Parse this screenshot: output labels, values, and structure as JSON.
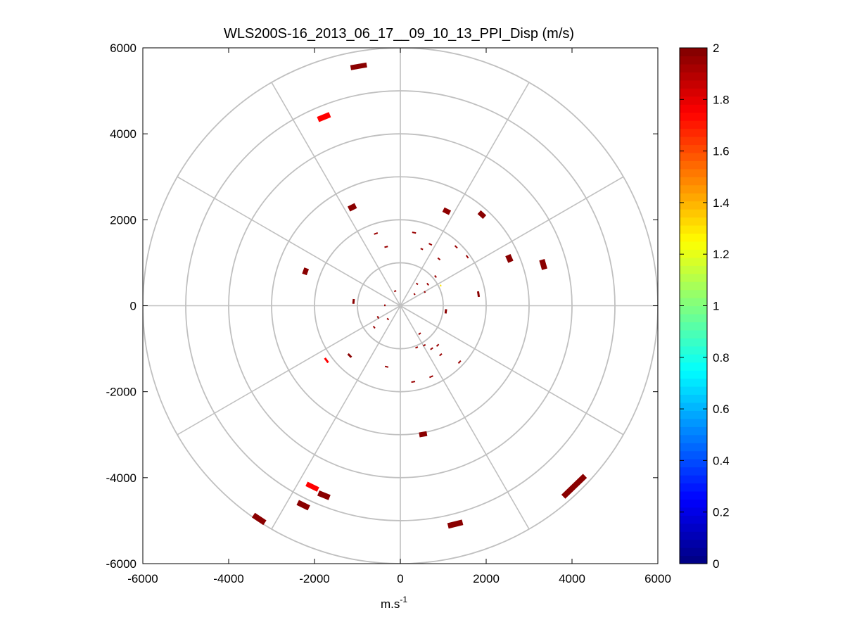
{
  "chart_data": {
    "type": "scatter",
    "subtype": "polar-ppi",
    "title": "WLS200S-16_2013_06_17__09_10_13_PPI_Disp (m/s)",
    "xlabel": "m.s",
    "xlabel_sup": "-1",
    "ylabel": "",
    "xlim": [
      -6000,
      6000
    ],
    "ylim": [
      -6000,
      6000
    ],
    "xticks": [
      "-6000",
      "-4000",
      "-2000",
      "0",
      "2000",
      "4000",
      "6000"
    ],
    "yticks": [
      "6000",
      "4000",
      "2000",
      "0",
      "-2000",
      "-4000",
      "-6000"
    ],
    "grid_rings": [
      1000,
      2000,
      3000,
      4000,
      5000,
      6000
    ],
    "grid_spokes_deg": [
      0,
      30,
      60,
      90,
      120,
      150,
      180,
      210,
      240,
      270,
      300,
      330
    ],
    "colorbar": {
      "min": 0,
      "max": 2,
      "ticks": [
        "0",
        "0.2",
        "0.4",
        "0.6",
        "0.8",
        "1",
        "1.2",
        "1.4",
        "1.6",
        "1.8",
        "2"
      ],
      "colormap": "jet"
    },
    "segments": [
      {
        "x": -970,
        "y": 5570,
        "len": 380,
        "w": 7,
        "value": 1.98
      },
      {
        "x": -1780,
        "y": 4390,
        "len": 300,
        "w": 8,
        "value": 1.75
      },
      {
        "x": -1120,
        "y": 2290,
        "len": 180,
        "w": 8,
        "value": 1.98
      },
      {
        "x": 1080,
        "y": 2200,
        "len": 170,
        "w": 7,
        "value": 1.97
      },
      {
        "x": 1900,
        "y": 2120,
        "len": 170,
        "w": 7,
        "value": 1.98
      },
      {
        "x": 2540,
        "y": 1100,
        "len": 170,
        "w": 8,
        "value": 1.98
      },
      {
        "x": 3330,
        "y": 960,
        "len": 230,
        "w": 8,
        "value": 1.98
      },
      {
        "x": -2210,
        "y": 800,
        "len": 150,
        "w": 7,
        "value": 1.98
      },
      {
        "x": -570,
        "y": 1680,
        "len": 90,
        "w": 2,
        "value": 1.95
      },
      {
        "x": -330,
        "y": 1370,
        "len": 80,
        "w": 2,
        "value": 1.95
      },
      {
        "x": 320,
        "y": 1700,
        "len": 90,
        "w": 2,
        "value": 1.95
      },
      {
        "x": 700,
        "y": 1430,
        "len": 80,
        "w": 2,
        "value": 1.95
      },
      {
        "x": 1300,
        "y": 1370,
        "len": 80,
        "w": 2,
        "value": 1.95
      },
      {
        "x": 1560,
        "y": 1140,
        "len": 80,
        "w": 2,
        "value": 1.95
      },
      {
        "x": 500,
        "y": 1320,
        "len": 60,
        "w": 2,
        "value": 1.95
      },
      {
        "x": 900,
        "y": 1090,
        "len": 70,
        "w": 2,
        "value": 1.95
      },
      {
        "x": 820,
        "y": 680,
        "len": 60,
        "w": 2,
        "value": 1.95
      },
      {
        "x": 1820,
        "y": 270,
        "len": 130,
        "w": 3,
        "value": 1.98
      },
      {
        "x": 1060,
        "y": -130,
        "len": 100,
        "w": 3,
        "value": 1.98
      },
      {
        "x": 390,
        "y": 510,
        "len": 50,
        "w": 2,
        "value": 1.95
      },
      {
        "x": 640,
        "y": 500,
        "len": 60,
        "w": 2,
        "value": 1.95
      },
      {
        "x": 940,
        "y": 470,
        "len": 40,
        "w": 2,
        "value": 1.3
      },
      {
        "x": 330,
        "y": 270,
        "len": 40,
        "w": 2,
        "value": 1.95
      },
      {
        "x": 570,
        "y": 320,
        "len": 40,
        "w": 2,
        "value": 1.95
      },
      {
        "x": -120,
        "y": 340,
        "len": 50,
        "w": 2,
        "value": 1.95
      },
      {
        "x": -360,
        "y": 10,
        "len": 40,
        "w": 2,
        "value": 1.95
      },
      {
        "x": -1090,
        "y": 100,
        "len": 110,
        "w": 3,
        "value": 1.98
      },
      {
        "x": -520,
        "y": -270,
        "len": 60,
        "w": 2,
        "value": 1.95
      },
      {
        "x": -610,
        "y": -500,
        "len": 60,
        "w": 2,
        "value": 1.95
      },
      {
        "x": -290,
        "y": -310,
        "len": 50,
        "w": 2,
        "value": 1.95
      },
      {
        "x": 450,
        "y": -650,
        "len": 60,
        "w": 2,
        "value": 1.95
      },
      {
        "x": 380,
        "y": -970,
        "len": 60,
        "w": 2,
        "value": 1.95
      },
      {
        "x": 560,
        "y": -920,
        "len": 60,
        "w": 2,
        "value": 1.95
      },
      {
        "x": 730,
        "y": -1000,
        "len": 70,
        "w": 2,
        "value": 1.95
      },
      {
        "x": 870,
        "y": -920,
        "len": 70,
        "w": 2,
        "value": 1.95
      },
      {
        "x": 940,
        "y": -1140,
        "len": 70,
        "w": 2,
        "value": 1.95
      },
      {
        "x": 1380,
        "y": -1310,
        "len": 80,
        "w": 2,
        "value": 1.95
      },
      {
        "x": 720,
        "y": -1650,
        "len": 90,
        "w": 2,
        "value": 1.95
      },
      {
        "x": 300,
        "y": -1770,
        "len": 90,
        "w": 2,
        "value": 1.95
      },
      {
        "x": -320,
        "y": -1420,
        "len": 80,
        "w": 2,
        "value": 1.95
      },
      {
        "x": -1180,
        "y": -1160,
        "len": 110,
        "w": 3,
        "value": 1.98
      },
      {
        "x": -1720,
        "y": -1270,
        "len": 130,
        "w": 3,
        "value": 1.75
      },
      {
        "x": 530,
        "y": -2990,
        "len": 180,
        "w": 7,
        "value": 1.98
      },
      {
        "x": -2050,
        "y": -4210,
        "len": 300,
        "w": 7,
        "value": 1.75
      },
      {
        "x": -1780,
        "y": -4410,
        "len": 280,
        "w": 8,
        "value": 1.98
      },
      {
        "x": -2260,
        "y": -4640,
        "len": 290,
        "w": 8,
        "value": 1.98
      },
      {
        "x": -3290,
        "y": -4960,
        "len": 320,
        "w": 8,
        "value": 1.98
      },
      {
        "x": 1280,
        "y": -5080,
        "len": 350,
        "w": 8,
        "value": 1.98
      },
      {
        "x": 4050,
        "y": -4200,
        "len": 700,
        "w": 8,
        "value": 1.98
      }
    ]
  }
}
